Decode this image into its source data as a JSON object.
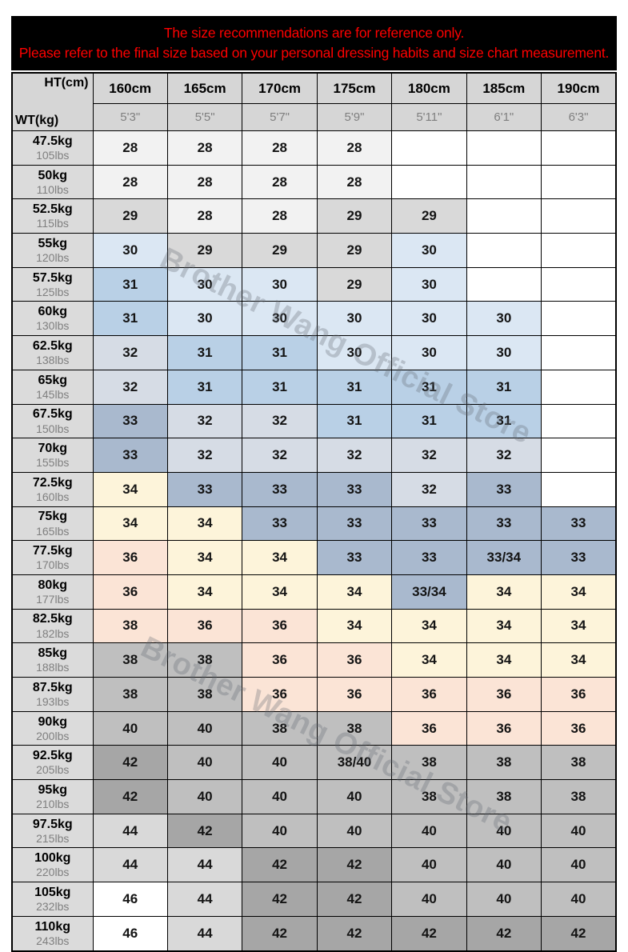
{
  "banner": {
    "line1": "The size recommendations are for reference only.",
    "line2": "Please refer to the final size based on your personal dressing habits and size chart measurement.",
    "text_color": "#ff0000",
    "bg_color": "#000000"
  },
  "watermark": {
    "text": "Brother Wang Official Store"
  },
  "palette": {
    "w": "#ffffff",
    "g1": "#f2f2f2",
    "g2": "#d9d9d9",
    "g3": "#bfbfbf",
    "g4": "#a6a6a6",
    "b1": "#dbe7f3",
    "b2": "#b9d0e6",
    "bg1": "#d6dce5",
    "bg2": "#a9b9ce",
    "y": "#fdf4da",
    "p": "#fbe4d6"
  },
  "chart_data": {
    "type": "table",
    "corner_top": "HT(cm)",
    "corner_bottom": "WT(kg)",
    "height_columns": [
      {
        "cm": "160cm",
        "ft": "5'3\""
      },
      {
        "cm": "165cm",
        "ft": "5'5\""
      },
      {
        "cm": "170cm",
        "ft": "5'7\""
      },
      {
        "cm": "175cm",
        "ft": "5'9\""
      },
      {
        "cm": "180cm",
        "ft": "5'11\""
      },
      {
        "cm": "185cm",
        "ft": "6'1\""
      },
      {
        "cm": "190cm",
        "ft": "6'3\""
      }
    ],
    "weight_rows": [
      {
        "kg": "47.5kg",
        "lbs": "105lbs",
        "sizes": [
          [
            "28",
            "g1"
          ],
          [
            "28",
            "g1"
          ],
          [
            "28",
            "g1"
          ],
          [
            "28",
            "g1"
          ],
          [
            "",
            "w"
          ],
          [
            "",
            "w"
          ],
          [
            "",
            "w"
          ]
        ]
      },
      {
        "kg": "50kg",
        "lbs": "110lbs",
        "sizes": [
          [
            "28",
            "g1"
          ],
          [
            "28",
            "g1"
          ],
          [
            "28",
            "g1"
          ],
          [
            "28",
            "g1"
          ],
          [
            "",
            "w"
          ],
          [
            "",
            "w"
          ],
          [
            "",
            "w"
          ]
        ]
      },
      {
        "kg": "52.5kg",
        "lbs": "115lbs",
        "sizes": [
          [
            "29",
            "g2"
          ],
          [
            "28",
            "g1"
          ],
          [
            "28",
            "g1"
          ],
          [
            "29",
            "g2"
          ],
          [
            "29",
            "g2"
          ],
          [
            "",
            "w"
          ],
          [
            "",
            "w"
          ]
        ]
      },
      {
        "kg": "55kg",
        "lbs": "120lbs",
        "sizes": [
          [
            "30",
            "b1"
          ],
          [
            "29",
            "g2"
          ],
          [
            "29",
            "g2"
          ],
          [
            "29",
            "g2"
          ],
          [
            "30",
            "b1"
          ],
          [
            "",
            "w"
          ],
          [
            "",
            "w"
          ]
        ]
      },
      {
        "kg": "57.5kg",
        "lbs": "125lbs",
        "sizes": [
          [
            "31",
            "b2"
          ],
          [
            "30",
            "b1"
          ],
          [
            "30",
            "b1"
          ],
          [
            "29",
            "g2"
          ],
          [
            "30",
            "b1"
          ],
          [
            "",
            "w"
          ],
          [
            "",
            "w"
          ]
        ]
      },
      {
        "kg": "60kg",
        "lbs": "130lbs",
        "sizes": [
          [
            "31",
            "b2"
          ],
          [
            "30",
            "b1"
          ],
          [
            "30",
            "b1"
          ],
          [
            "30",
            "b1"
          ],
          [
            "30",
            "b1"
          ],
          [
            "30",
            "b1"
          ],
          [
            "",
            "w"
          ]
        ]
      },
      {
        "kg": "62.5kg",
        "lbs": "138lbs",
        "sizes": [
          [
            "32",
            "bg1"
          ],
          [
            "31",
            "b2"
          ],
          [
            "31",
            "b2"
          ],
          [
            "30",
            "b1"
          ],
          [
            "30",
            "b1"
          ],
          [
            "30",
            "b1"
          ],
          [
            "",
            "w"
          ]
        ]
      },
      {
        "kg": "65kg",
        "lbs": "145lbs",
        "sizes": [
          [
            "32",
            "bg1"
          ],
          [
            "31",
            "b2"
          ],
          [
            "31",
            "b2"
          ],
          [
            "31",
            "b2"
          ],
          [
            "31",
            "b2"
          ],
          [
            "31",
            "b2"
          ],
          [
            "",
            "w"
          ]
        ]
      },
      {
        "kg": "67.5kg",
        "lbs": "150lbs",
        "sizes": [
          [
            "33",
            "bg2"
          ],
          [
            "32",
            "bg1"
          ],
          [
            "32",
            "bg1"
          ],
          [
            "31",
            "b2"
          ],
          [
            "31",
            "b2"
          ],
          [
            "31",
            "b2"
          ],
          [
            "",
            "w"
          ]
        ]
      },
      {
        "kg": "70kg",
        "lbs": "155lbs",
        "sizes": [
          [
            "33",
            "bg2"
          ],
          [
            "32",
            "bg1"
          ],
          [
            "32",
            "bg1"
          ],
          [
            "32",
            "bg1"
          ],
          [
            "32",
            "bg1"
          ],
          [
            "32",
            "bg1"
          ],
          [
            "",
            "w"
          ]
        ]
      },
      {
        "kg": "72.5kg",
        "lbs": "160lbs",
        "sizes": [
          [
            "34",
            "y"
          ],
          [
            "33",
            "bg2"
          ],
          [
            "33",
            "bg2"
          ],
          [
            "33",
            "bg2"
          ],
          [
            "32",
            "bg1"
          ],
          [
            "33",
            "bg2"
          ],
          [
            "",
            "w"
          ]
        ]
      },
      {
        "kg": "75kg",
        "lbs": "165lbs",
        "sizes": [
          [
            "34",
            "y"
          ],
          [
            "34",
            "y"
          ],
          [
            "33",
            "bg2"
          ],
          [
            "33",
            "bg2"
          ],
          [
            "33",
            "bg2"
          ],
          [
            "33",
            "bg2"
          ],
          [
            "33",
            "bg2"
          ]
        ]
      },
      {
        "kg": "77.5kg",
        "lbs": "170lbs",
        "sizes": [
          [
            "36",
            "p"
          ],
          [
            "34",
            "y"
          ],
          [
            "34",
            "y"
          ],
          [
            "33",
            "bg2"
          ],
          [
            "33",
            "bg2"
          ],
          [
            "33/34",
            "bg2"
          ],
          [
            "33",
            "bg2"
          ]
        ]
      },
      {
        "kg": "80kg",
        "lbs": "177lbs",
        "sizes": [
          [
            "36",
            "p"
          ],
          [
            "34",
            "y"
          ],
          [
            "34",
            "y"
          ],
          [
            "34",
            "y"
          ],
          [
            "33/34",
            "bg2"
          ],
          [
            "34",
            "y"
          ],
          [
            "34",
            "y"
          ]
        ]
      },
      {
        "kg": "82.5kg",
        "lbs": "182lbs",
        "sizes": [
          [
            "38",
            "p"
          ],
          [
            "36",
            "p"
          ],
          [
            "36",
            "p"
          ],
          [
            "34",
            "y"
          ],
          [
            "34",
            "y"
          ],
          [
            "34",
            "y"
          ],
          [
            "34",
            "y"
          ]
        ]
      },
      {
        "kg": "85kg",
        "lbs": "188lbs",
        "sizes": [
          [
            "38",
            "g3"
          ],
          [
            "38",
            "g3"
          ],
          [
            "36",
            "p"
          ],
          [
            "36",
            "p"
          ],
          [
            "34",
            "y"
          ],
          [
            "34",
            "y"
          ],
          [
            "34",
            "y"
          ]
        ]
      },
      {
        "kg": "87.5kg",
        "lbs": "193lbs",
        "sizes": [
          [
            "38",
            "g3"
          ],
          [
            "38",
            "g3"
          ],
          [
            "36",
            "p"
          ],
          [
            "36",
            "p"
          ],
          [
            "36",
            "p"
          ],
          [
            "36",
            "p"
          ],
          [
            "36",
            "p"
          ]
        ]
      },
      {
        "kg": "90kg",
        "lbs": "200lbs",
        "sizes": [
          [
            "40",
            "g3"
          ],
          [
            "40",
            "g3"
          ],
          [
            "38",
            "g3"
          ],
          [
            "38",
            "g3"
          ],
          [
            "36",
            "p"
          ],
          [
            "36",
            "p"
          ],
          [
            "36",
            "p"
          ]
        ]
      },
      {
        "kg": "92.5kg",
        "lbs": "205lbs",
        "sizes": [
          [
            "42",
            "g4"
          ],
          [
            "40",
            "g3"
          ],
          [
            "40",
            "g3"
          ],
          [
            "38/40",
            "g3"
          ],
          [
            "38",
            "g3"
          ],
          [
            "38",
            "g3"
          ],
          [
            "38",
            "g3"
          ]
        ]
      },
      {
        "kg": "95kg",
        "lbs": "210lbs",
        "sizes": [
          [
            "42",
            "g4"
          ],
          [
            "40",
            "g3"
          ],
          [
            "40",
            "g3"
          ],
          [
            "40",
            "g3"
          ],
          [
            "38",
            "g3"
          ],
          [
            "38",
            "g3"
          ],
          [
            "38",
            "g3"
          ]
        ]
      },
      {
        "kg": "97.5kg",
        "lbs": "215lbs",
        "sizes": [
          [
            "44",
            "g2"
          ],
          [
            "42",
            "g4"
          ],
          [
            "40",
            "g3"
          ],
          [
            "40",
            "g3"
          ],
          [
            "40",
            "g3"
          ],
          [
            "40",
            "g3"
          ],
          [
            "40",
            "g3"
          ]
        ]
      },
      {
        "kg": "100kg",
        "lbs": "220lbs",
        "sizes": [
          [
            "44",
            "g2"
          ],
          [
            "44",
            "g2"
          ],
          [
            "42",
            "g4"
          ],
          [
            "42",
            "g4"
          ],
          [
            "40",
            "g3"
          ],
          [
            "40",
            "g3"
          ],
          [
            "40",
            "g3"
          ]
        ]
      },
      {
        "kg": "105kg",
        "lbs": "232lbs",
        "sizes": [
          [
            "46",
            "w"
          ],
          [
            "44",
            "g2"
          ],
          [
            "42",
            "g4"
          ],
          [
            "42",
            "g4"
          ],
          [
            "40",
            "g3"
          ],
          [
            "40",
            "g3"
          ],
          [
            "40",
            "g3"
          ]
        ]
      },
      {
        "kg": "110kg",
        "lbs": "243lbs",
        "sizes": [
          [
            "46",
            "w"
          ],
          [
            "44",
            "g2"
          ],
          [
            "42",
            "g4"
          ],
          [
            "42",
            "g4"
          ],
          [
            "42",
            "g4"
          ],
          [
            "42",
            "g4"
          ],
          [
            "42",
            "g4"
          ]
        ]
      }
    ]
  }
}
